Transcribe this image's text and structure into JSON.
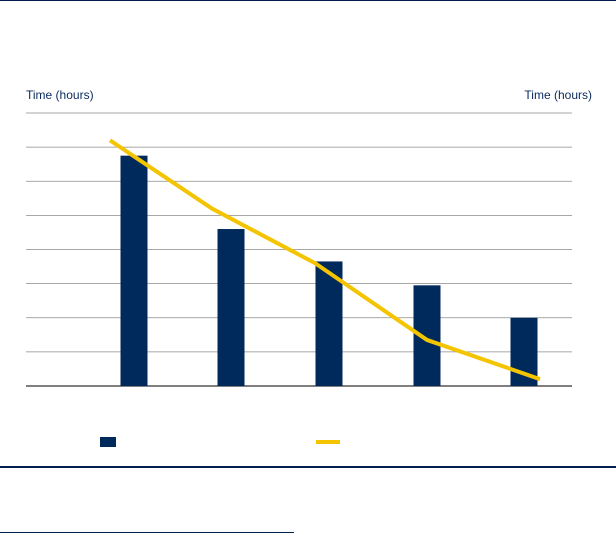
{
  "chart_data": {
    "type": "bar",
    "title": "",
    "ylabel_left": "Time (hours)",
    "ylabel_right": "Time (hours)",
    "ylim": [
      0,
      8
    ],
    "grid": true,
    "categories": [
      "",
      "",
      "",
      "",
      ""
    ],
    "series": [
      {
        "type": "bar",
        "values": [
          6.75,
          4.6,
          3.65,
          2.95,
          2.0
        ]
      },
      {
        "type": "line",
        "values": [
          7.2,
          5.2,
          3.6,
          1.35,
          0.2
        ]
      }
    ],
    "colors": {
      "bar": "#002a5c",
      "line": "#f5c400",
      "grid": "#8a8a8a"
    },
    "legend": [
      "",
      ""
    ]
  }
}
